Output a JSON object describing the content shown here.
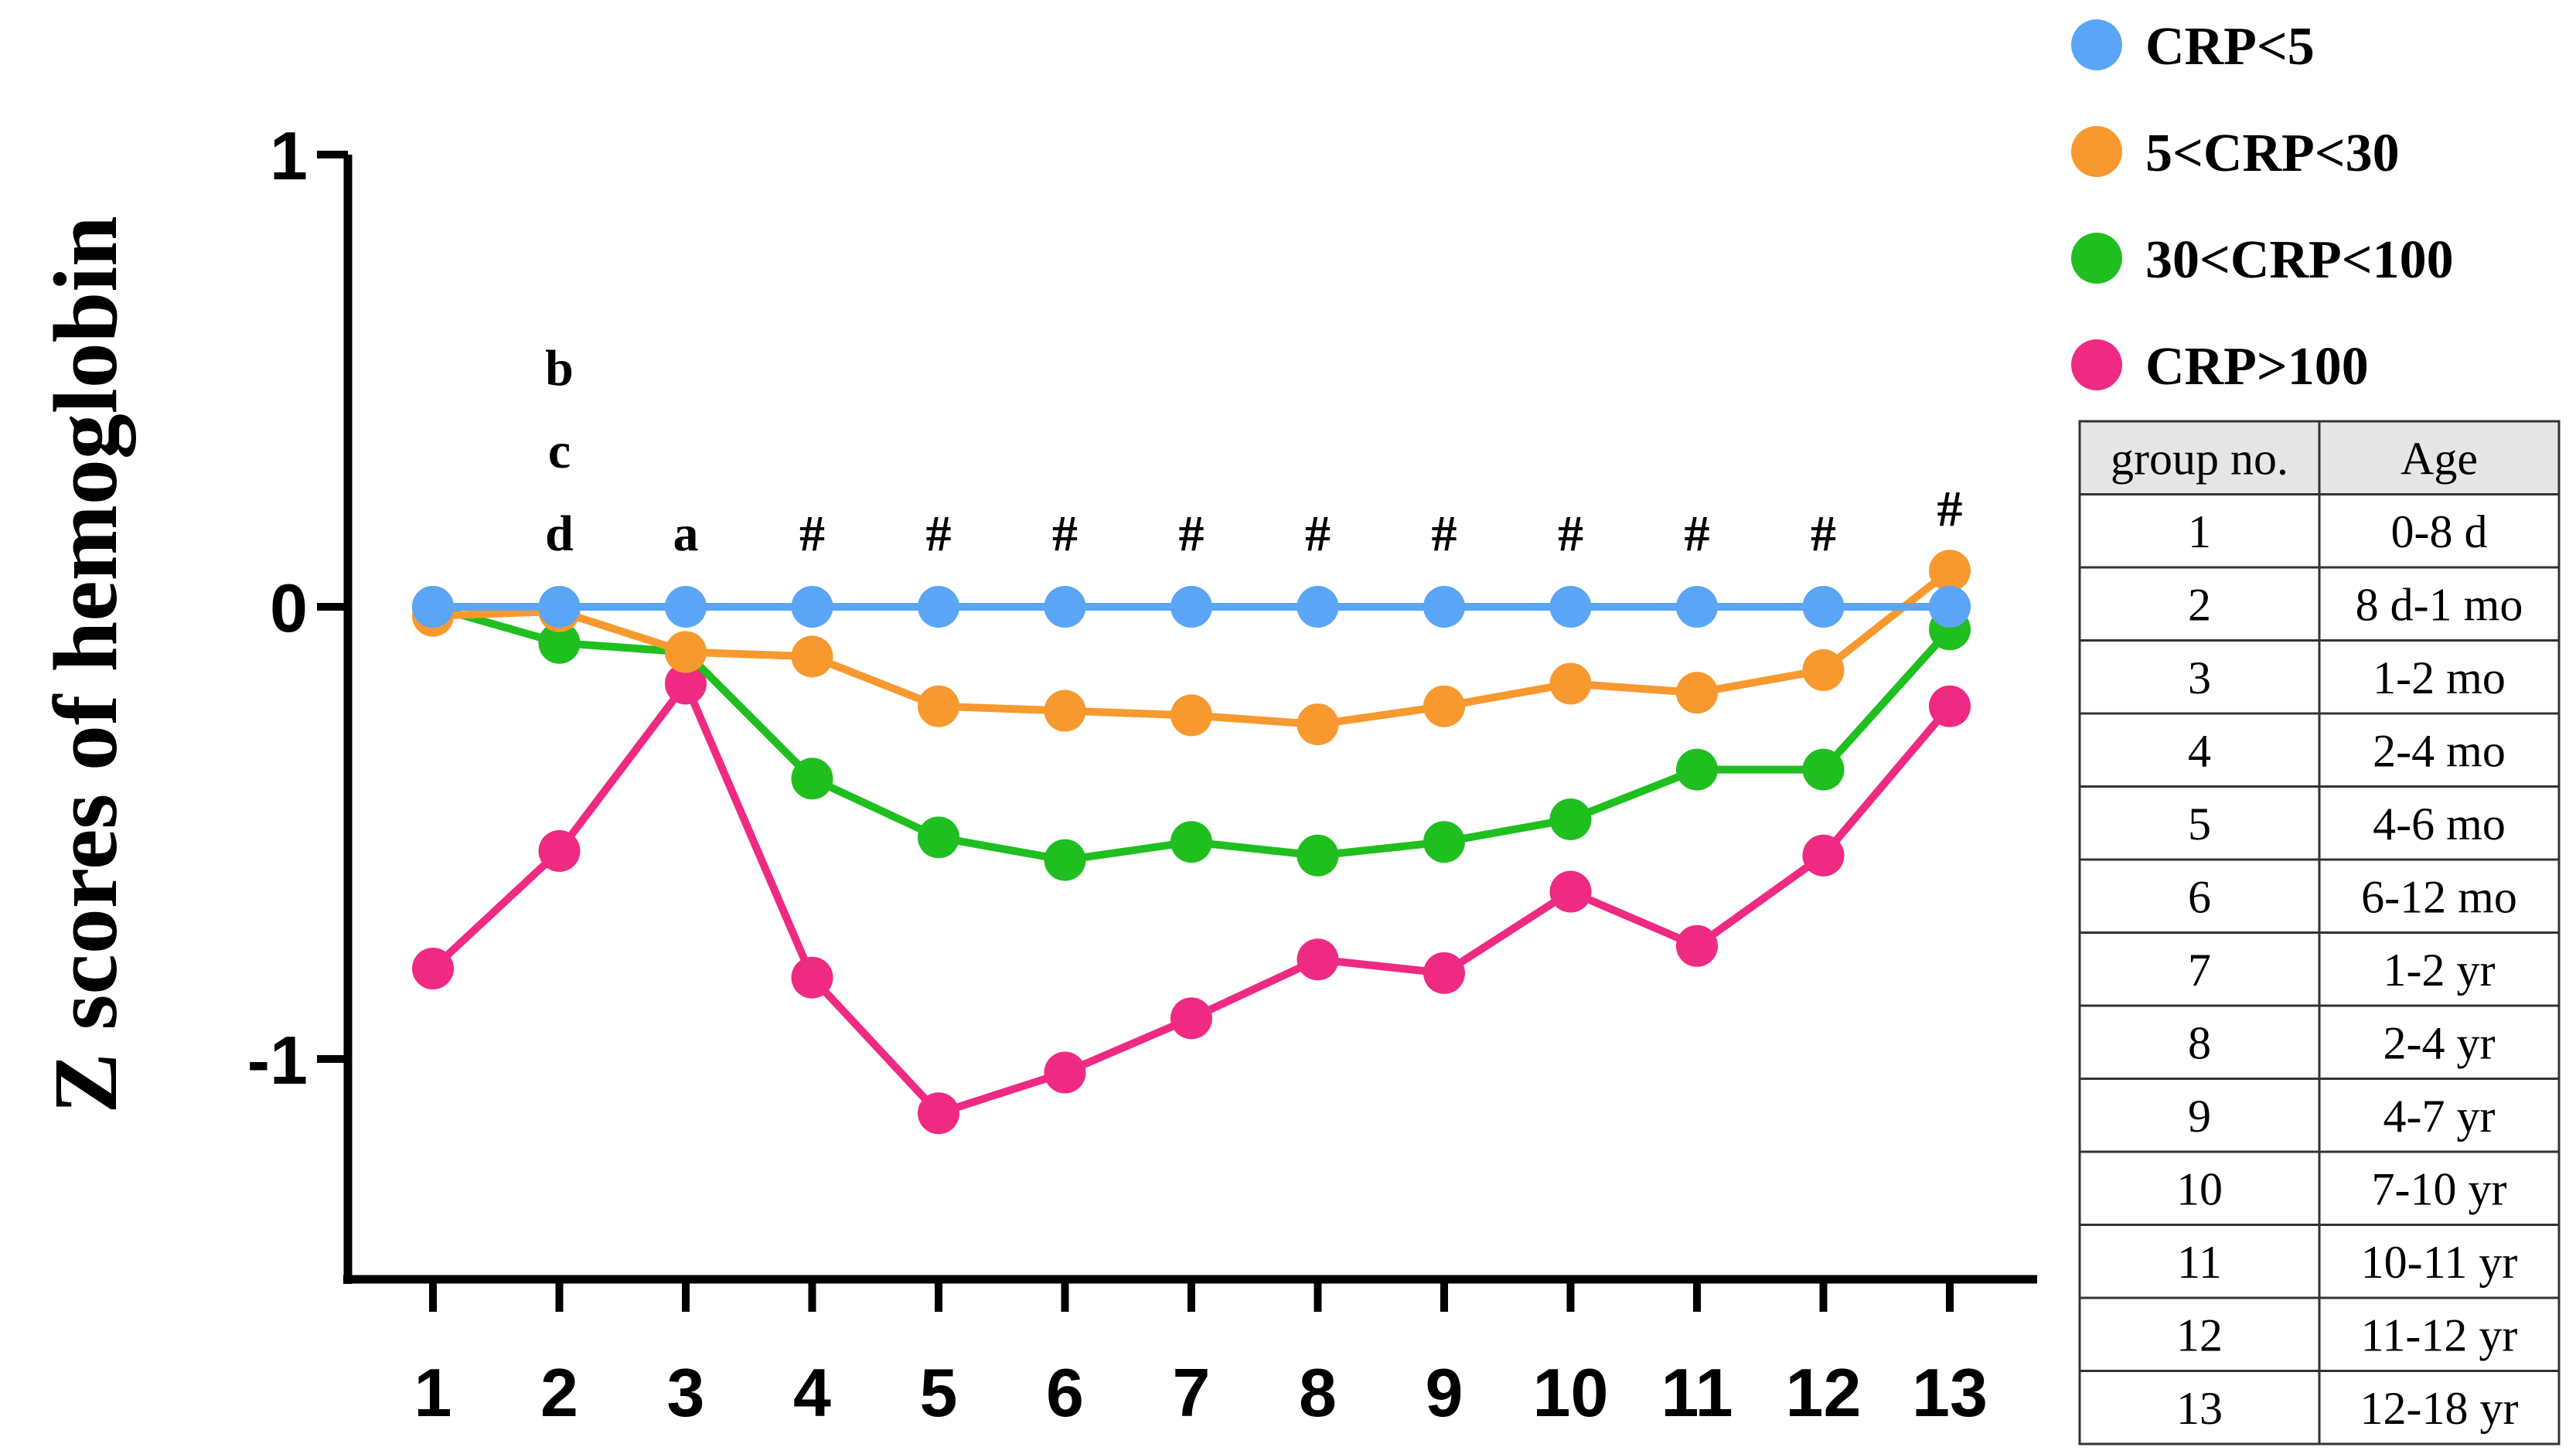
{
  "chart_data": {
    "type": "line",
    "title": "",
    "xlabel": "",
    "ylabel": "Z scores of hemoglobin",
    "ylim": [
      -1.5,
      1
    ],
    "y_ticks": [
      {
        "value": 1,
        "label": "1"
      },
      {
        "value": 0,
        "label": "0"
      },
      {
        "value": -1,
        "label": "-1"
      }
    ],
    "x": [
      "1",
      "2",
      "3",
      "4",
      "5",
      "6",
      "7",
      "8",
      "9",
      "10",
      "11",
      "12",
      "13"
    ],
    "grid": false,
    "legend_position": "top-right",
    "series": [
      {
        "name": "CRP<5",
        "color": "#5aa5f5",
        "values": [
          0,
          0,
          0,
          0,
          0,
          0,
          0,
          0,
          0,
          0,
          0,
          0,
          0
        ]
      },
      {
        "name": "5<CRP<30",
        "color": "#f7992f",
        "values": [
          -0.02,
          -0.01,
          -0.1,
          -0.11,
          -0.22,
          -0.23,
          -0.24,
          -0.26,
          -0.22,
          -0.17,
          -0.19,
          -0.14,
          0.08
        ]
      },
      {
        "name": "30<CRP<100",
        "color": "#1fbf1f",
        "values": [
          0,
          -0.08,
          -0.1,
          -0.38,
          -0.51,
          -0.56,
          -0.52,
          -0.55,
          -0.52,
          -0.47,
          -0.36,
          -0.36,
          -0.05
        ]
      },
      {
        "name": "CRP>100",
        "color": "#ee2a82",
        "values": [
          -0.8,
          -0.54,
          -0.17,
          -0.82,
          -1.12,
          -1.03,
          -0.91,
          -0.78,
          -0.81,
          -0.63,
          -0.75,
          -0.55,
          -0.22
        ]
      }
    ],
    "annotations": [
      {
        "x": "2",
        "lines": [
          "b",
          "c",
          "d"
        ]
      },
      {
        "x": "3",
        "lines": [
          "a"
        ]
      },
      {
        "x": "4",
        "lines": [
          "#"
        ]
      },
      {
        "x": "5",
        "lines": [
          "#"
        ]
      },
      {
        "x": "6",
        "lines": [
          "#"
        ]
      },
      {
        "x": "7",
        "lines": [
          "#"
        ]
      },
      {
        "x": "8",
        "lines": [
          "#"
        ]
      },
      {
        "x": "9",
        "lines": [
          "#"
        ]
      },
      {
        "x": "10",
        "lines": [
          "#"
        ]
      },
      {
        "x": "11",
        "lines": [
          "#"
        ]
      },
      {
        "x": "12",
        "lines": [
          "#"
        ]
      },
      {
        "x": "13",
        "lines": [
          "#"
        ]
      }
    ]
  },
  "age_table": {
    "headers": [
      "group no.",
      "Age"
    ],
    "rows": [
      [
        "1",
        "0-8 d"
      ],
      [
        "2",
        "8 d-1 mo"
      ],
      [
        "3",
        "1-2 mo"
      ],
      [
        "4",
        "2-4 mo"
      ],
      [
        "5",
        "4-6 mo"
      ],
      [
        "6",
        "6-12 mo"
      ],
      [
        "7",
        "1-2 yr"
      ],
      [
        "8",
        "2-4 yr"
      ],
      [
        "9",
        "4-7 yr"
      ],
      [
        "10",
        "7-10 yr"
      ],
      [
        "11",
        "10-11 yr"
      ],
      [
        "12",
        "11-12 yr"
      ],
      [
        "13",
        "12-18 yr"
      ]
    ]
  }
}
